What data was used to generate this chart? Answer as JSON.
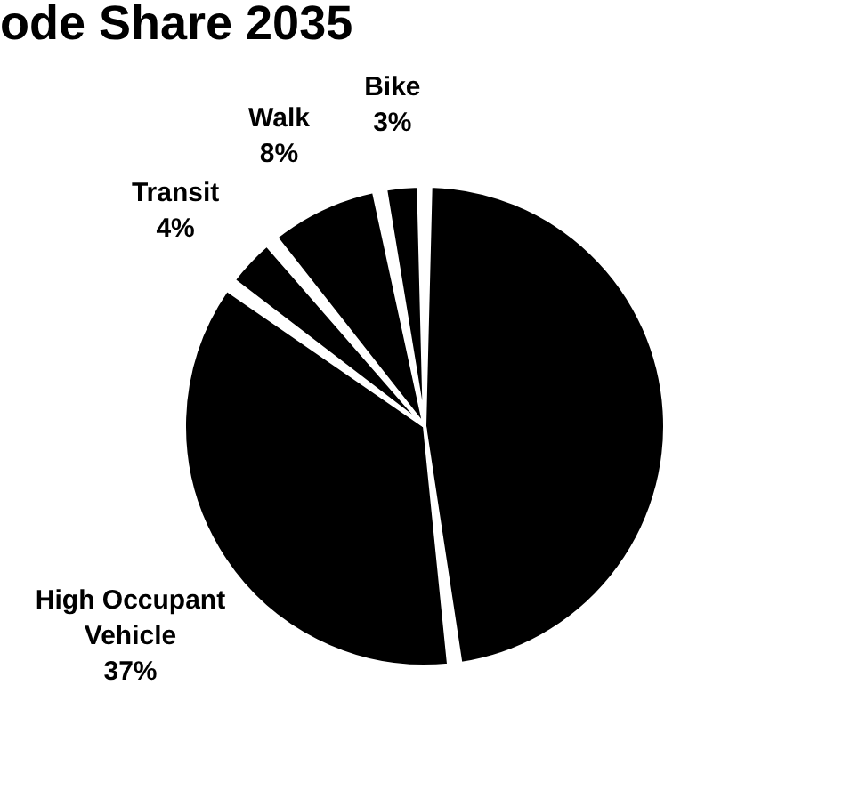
{
  "chart_data": {
    "type": "pie",
    "title": "ode Share 2035",
    "categories": [
      null,
      "High Occupant Vehicle",
      "Transit",
      "Walk",
      "Bike"
    ],
    "values": [
      48,
      37,
      4,
      8,
      3
    ],
    "value_labels": [
      null,
      "37%",
      "4%",
      "8%",
      "3%"
    ],
    "colors": [
      "#000000",
      "#000000",
      "#000000",
      "#000000",
      "#000000"
    ]
  }
}
